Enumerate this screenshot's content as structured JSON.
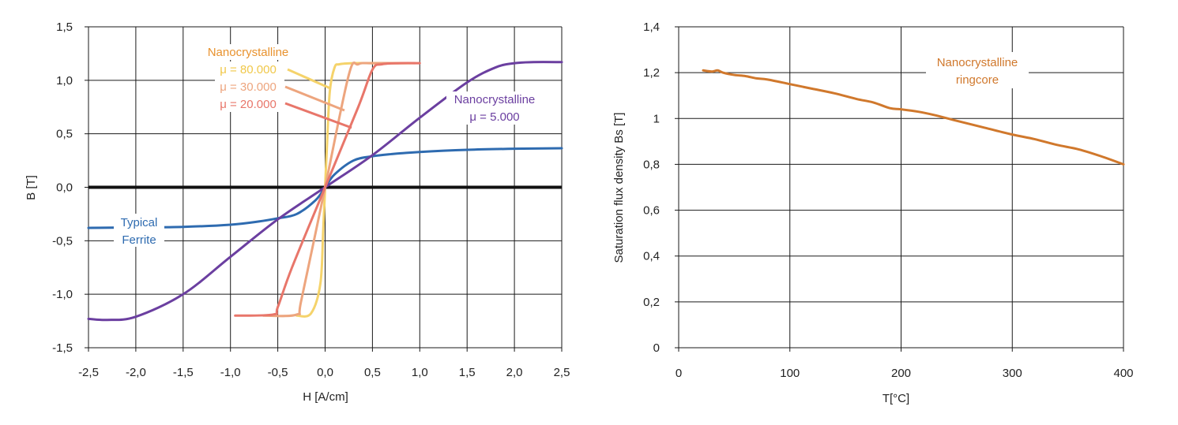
{
  "chart_data": [
    {
      "type": "line",
      "title": "",
      "xlabel": "H [A/cm]",
      "ylabel": "B [T]",
      "xlim": [
        -2.5,
        2.5
      ],
      "ylim": [
        -1.5,
        1.5
      ],
      "xticks": [
        "-2,5",
        "-2,0",
        "-1,5",
        "-1,0",
        "-0,5",
        "0,0",
        "0,5",
        "1,0",
        "1,5",
        "2,0",
        "2,5"
      ],
      "yticks": [
        "-1,5",
        "-1,0",
        "-0,5",
        "0,0",
        "0,5",
        "1,0",
        "1,5"
      ],
      "grid": true,
      "series": [
        {
          "name": "Typical Ferrite",
          "color": "#2e6bb0",
          "x": [
            -2.5,
            -2.0,
            -1.5,
            -1.0,
            -0.7,
            -0.5,
            -0.3,
            -0.1,
            0.0,
            0.1,
            0.3,
            0.5,
            0.7,
            1.0,
            1.5,
            2.0,
            2.5
          ],
          "y": [
            -0.38,
            -0.375,
            -0.37,
            -0.35,
            -0.32,
            -0.29,
            -0.25,
            -0.12,
            0.0,
            0.12,
            0.25,
            0.29,
            0.31,
            0.33,
            0.35,
            0.36,
            0.365
          ]
        },
        {
          "name": "Nanocrystalline μ = 5.000",
          "color": "#6b3fa0",
          "x": [
            -2.5,
            -2.3,
            -2.0,
            -1.5,
            -1.0,
            -0.5,
            0.0,
            0.5,
            1.0,
            1.5,
            1.8,
            2.0,
            2.2,
            2.5
          ],
          "y": [
            -1.23,
            -1.24,
            -1.21,
            -1.0,
            -0.65,
            -0.3,
            0.0,
            0.3,
            0.65,
            0.98,
            1.12,
            1.16,
            1.17,
            1.17
          ]
        },
        {
          "name": "Nanocrystalline μ = 80.000",
          "color": "#f5d36b",
          "x": [
            -0.3,
            -0.15,
            -0.05,
            -0.02,
            0.0,
            0.02,
            0.05,
            0.1,
            0.15,
            0.3,
            0.6,
            0.9
          ],
          "y": [
            -1.2,
            -1.18,
            -0.9,
            -0.4,
            0.0,
            0.4,
            0.9,
            1.12,
            1.15,
            1.16,
            1.16,
            1.16
          ]
        },
        {
          "name": "Nanocrystalline μ = 30.000",
          "color": "#eda57e",
          "x": [
            -0.65,
            -0.3,
            -0.25,
            0.0,
            0.25,
            0.35,
            0.5,
            0.8,
            0.95
          ],
          "y": [
            -1.2,
            -1.19,
            -1.05,
            0.0,
            1.05,
            1.15,
            1.16,
            1.16,
            1.16
          ]
        },
        {
          "name": "Nanocrystalline μ = 20.000",
          "color": "#e8766a",
          "x": [
            -0.95,
            -0.55,
            -0.5,
            -0.35,
            0.0,
            0.35,
            0.5,
            0.6,
            0.8,
            1.0
          ],
          "y": [
            -1.2,
            -1.19,
            -1.12,
            -0.75,
            0.0,
            0.75,
            1.1,
            1.15,
            1.16,
            1.16
          ]
        }
      ],
      "annotations": [
        {
          "text": "Nanocrystalline",
          "color": "#e8922e"
        },
        {
          "text": "μ = 80.000",
          "color": "#f0c84a"
        },
        {
          "text": "μ = 30.000",
          "color": "#eda57e"
        },
        {
          "text": "μ = 20.000",
          "color": "#e8766a"
        },
        {
          "text": "Nanocrystalline",
          "color": "#6b3fa0"
        },
        {
          "text": "μ = 5.000",
          "color": "#6b3fa0"
        },
        {
          "text": "Typical",
          "color": "#2e6bb0"
        },
        {
          "text": "Ferrite",
          "color": "#2e6bb0"
        }
      ]
    },
    {
      "type": "line",
      "title": "",
      "xlabel": "T[°C]",
      "ylabel": "Saturation flux density Bs [T]",
      "xlim": [
        0,
        400
      ],
      "ylim": [
        0,
        1.4
      ],
      "xticks": [
        "0",
        "100",
        "200",
        "300",
        "400"
      ],
      "yticks": [
        "0",
        "0,2",
        "0,4",
        "0,6",
        "0,8",
        "1",
        "1,2",
        "1,4"
      ],
      "grid": true,
      "series": [
        {
          "name": "Nanocrystalline ringcore",
          "color": "#d0782c",
          "x": [
            22,
            30,
            35,
            40,
            50,
            60,
            70,
            80,
            100,
            120,
            140,
            160,
            175,
            190,
            200,
            215,
            230,
            250,
            275,
            300,
            320,
            340,
            360,
            380,
            400
          ],
          "y": [
            1.21,
            1.205,
            1.21,
            1.2,
            1.19,
            1.185,
            1.175,
            1.17,
            1.15,
            1.13,
            1.11,
            1.085,
            1.07,
            1.045,
            1.04,
            1.03,
            1.015,
            0.99,
            0.96,
            0.93,
            0.91,
            0.885,
            0.865,
            0.835,
            0.8
          ]
        }
      ],
      "annotations": [
        {
          "text": "Nanocrystalline",
          "color": "#d0782c"
        },
        {
          "text": "ringcore",
          "color": "#d0782c"
        }
      ]
    }
  ]
}
